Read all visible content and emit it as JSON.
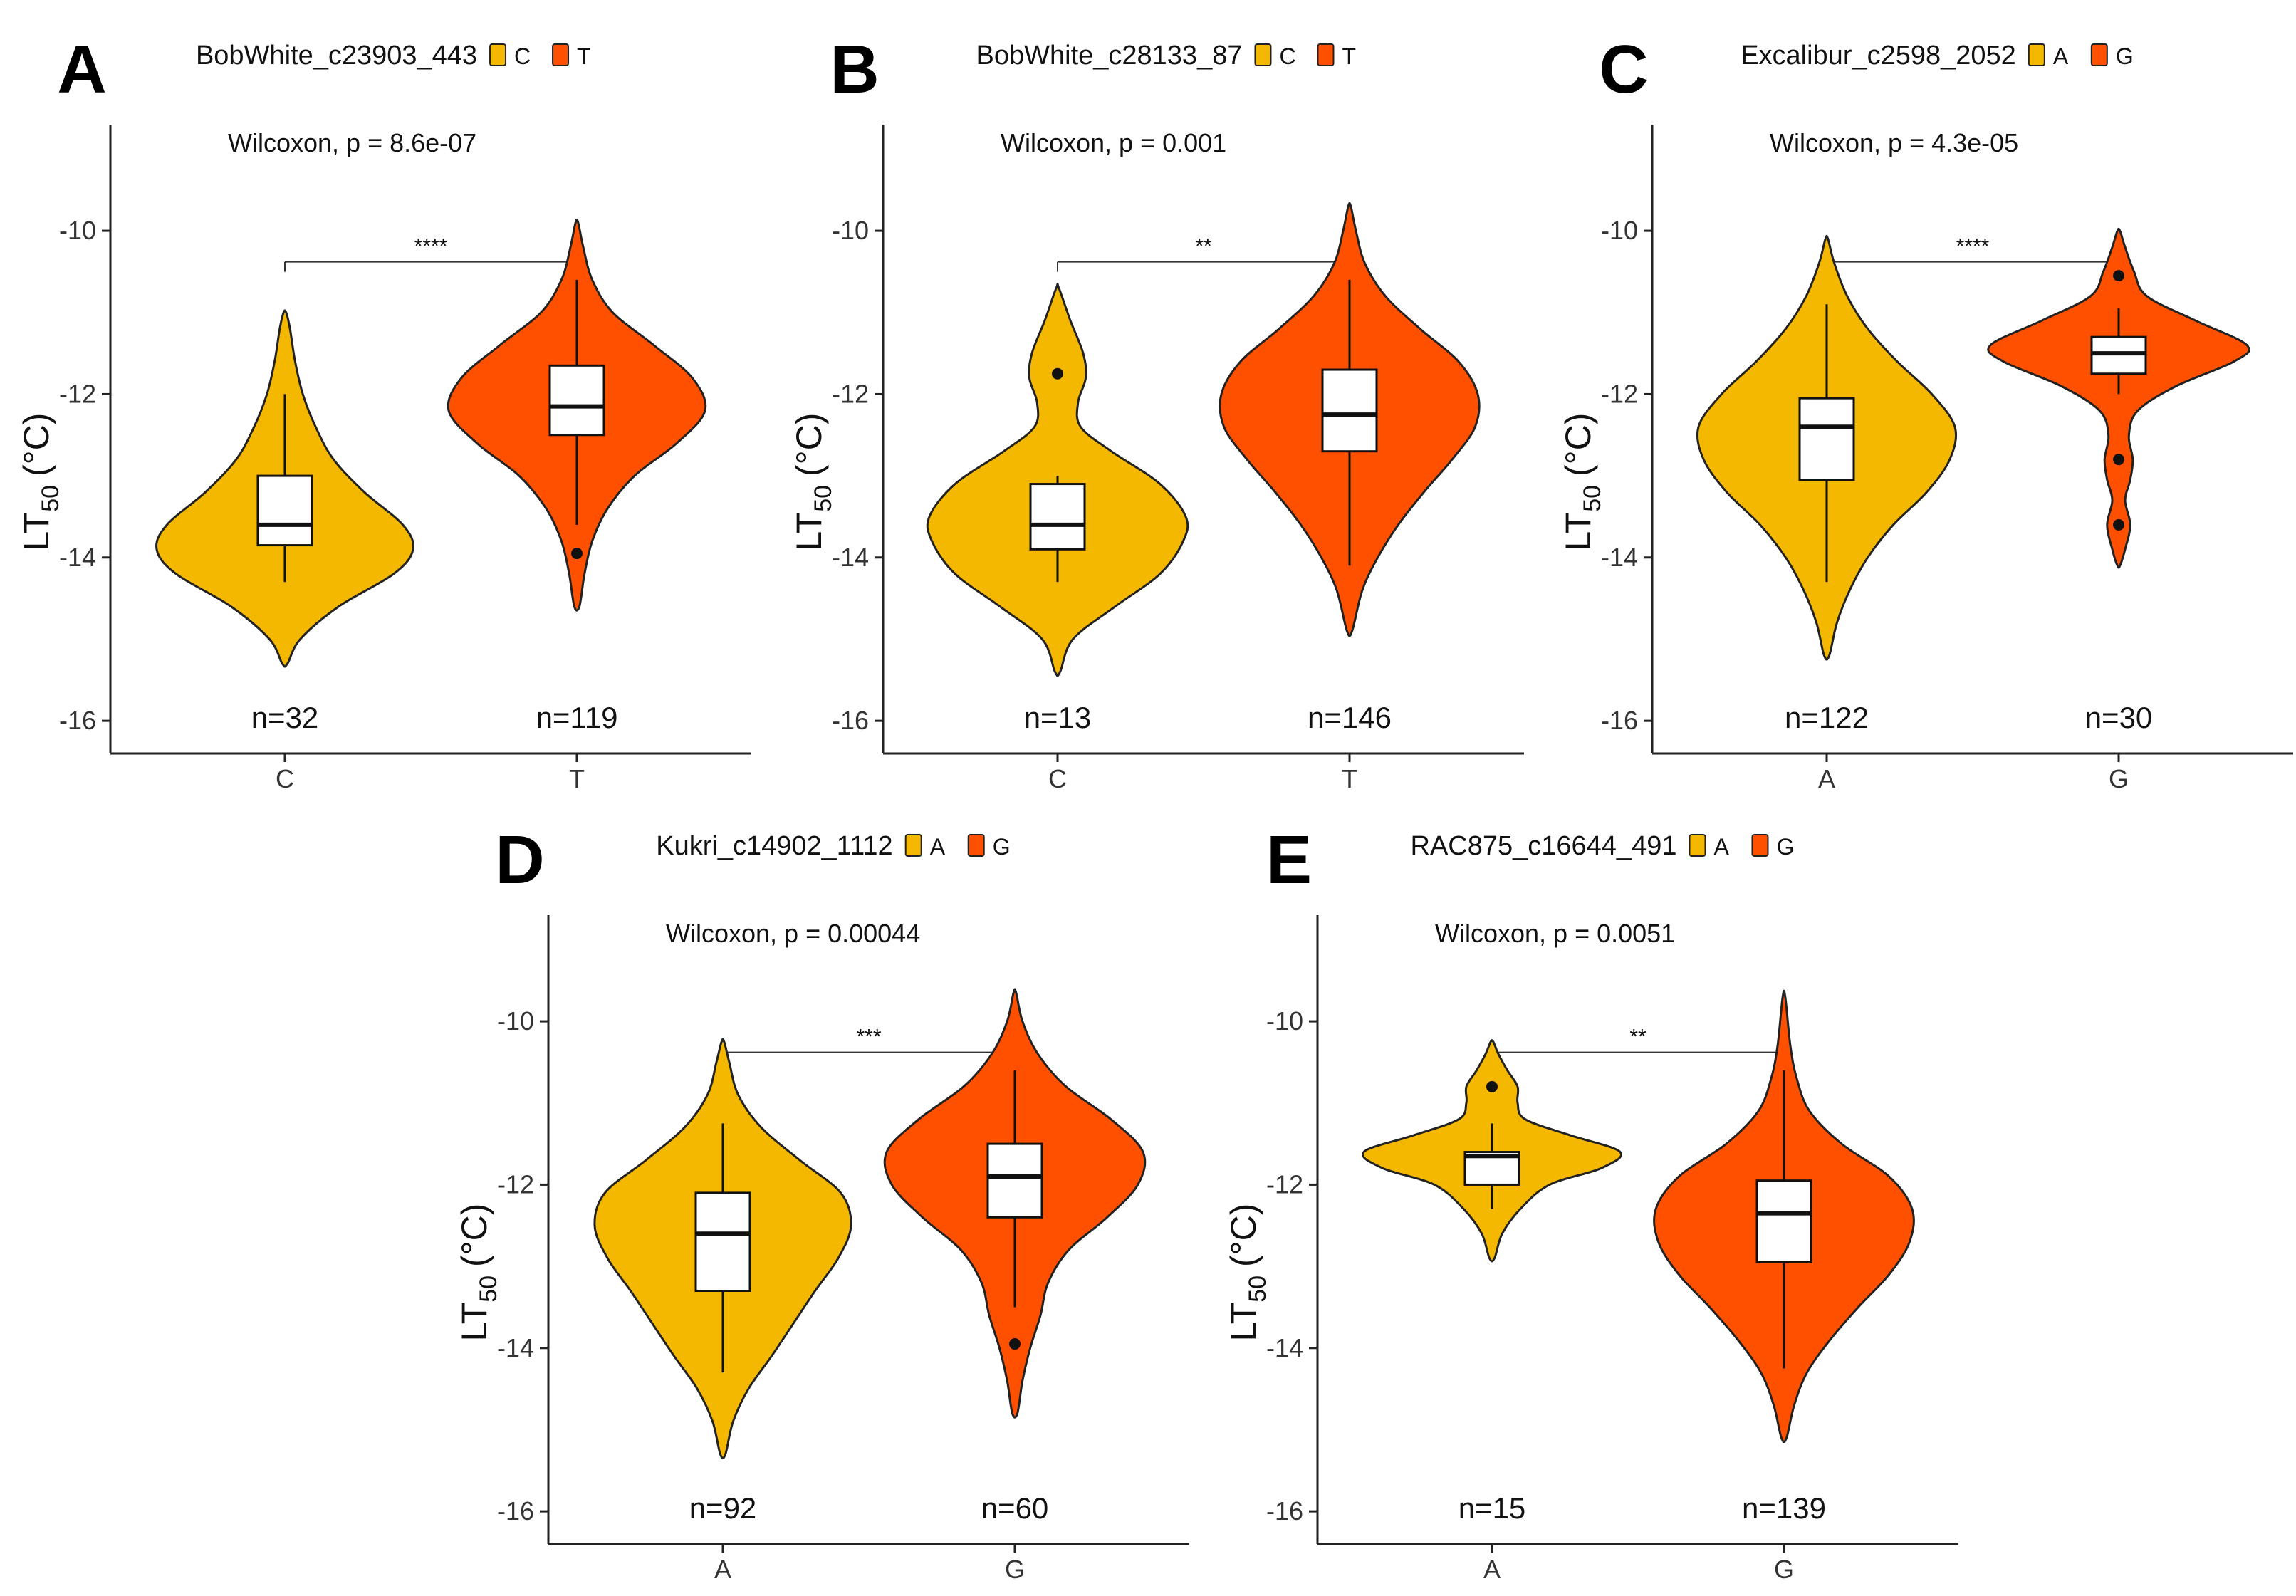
{
  "colors": {
    "group1": "#F5B800",
    "group2": "#FF5000",
    "outline": "#222222"
  },
  "chart_data": [
    {
      "type": "violin",
      "label": "A",
      "title": "BobWhite_c23903_443",
      "legend": [
        "C",
        "T"
      ],
      "ylabel_main": "LT",
      "ylabel_sub": "50",
      "ylabel_unit": "(°C)",
      "stat": "Wilcoxon, p = 8.6e-07",
      "significance": "****",
      "ylim": [
        -16.4,
        -8.7
      ],
      "yticks": [
        -10,
        -12,
        -14,
        -16
      ],
      "ytick_labels": [
        "-10",
        "-12",
        "-14",
        "-16"
      ],
      "groups": [
        {
          "name": "C",
          "n_label": "n=32",
          "min": -14.3,
          "q1": -13.85,
          "median": -13.6,
          "q3": -13.0,
          "max": -12.0,
          "violin_top": -11.0,
          "violin_bottom": -15.3,
          "outliers": [],
          "density": [
            [
              -15.3,
              0.02
            ],
            [
              -15.0,
              0.12
            ],
            [
              -14.6,
              0.42
            ],
            [
              -14.2,
              0.85
            ],
            [
              -13.9,
              1.0
            ],
            [
              -13.6,
              0.92
            ],
            [
              -13.2,
              0.62
            ],
            [
              -12.8,
              0.38
            ],
            [
              -12.4,
              0.24
            ],
            [
              -12.0,
              0.14
            ],
            [
              -11.6,
              0.08
            ],
            [
              -11.2,
              0.04
            ],
            [
              -11.0,
              0.01
            ]
          ]
        },
        {
          "name": "T",
          "n_label": "n=119",
          "min": -13.6,
          "q1": -12.5,
          "median": -12.15,
          "q3": -11.65,
          "max": -10.6,
          "violin_top": -9.9,
          "violin_bottom": -14.6,
          "outliers": [
            -13.95
          ],
          "density": [
            [
              -14.6,
              0.02
            ],
            [
              -14.2,
              0.06
            ],
            [
              -13.8,
              0.12
            ],
            [
              -13.4,
              0.24
            ],
            [
              -13.0,
              0.45
            ],
            [
              -12.6,
              0.78
            ],
            [
              -12.2,
              1.0
            ],
            [
              -11.8,
              0.9
            ],
            [
              -11.4,
              0.6
            ],
            [
              -11.0,
              0.28
            ],
            [
              -10.6,
              0.12
            ],
            [
              -10.2,
              0.05
            ],
            [
              -9.9,
              0.01
            ]
          ]
        }
      ]
    },
    {
      "type": "violin",
      "label": "B",
      "title": "BobWhite_c28133_87",
      "legend": [
        "C",
        "T"
      ],
      "ylabel_main": "LT",
      "ylabel_sub": "50",
      "ylabel_unit": "(°C)",
      "stat": "Wilcoxon, p = 0.001",
      "significance": "**",
      "ylim": [
        -16.4,
        -8.7
      ],
      "yticks": [
        -10,
        -12,
        -14,
        -16
      ],
      "ytick_labels": [
        "-10",
        "-12",
        "-14",
        "-16"
      ],
      "groups": [
        {
          "name": "C",
          "n_label": "n=13",
          "min": -14.3,
          "q1": -13.9,
          "median": -13.6,
          "q3": -13.1,
          "max": -13.0,
          "violin_top": -10.7,
          "violin_bottom": -15.4,
          "outliers": [
            -11.75
          ],
          "density": [
            [
              -15.4,
              0.02
            ],
            [
              -15.0,
              0.12
            ],
            [
              -14.6,
              0.45
            ],
            [
              -14.2,
              0.8
            ],
            [
              -13.8,
              0.98
            ],
            [
              -13.5,
              1.0
            ],
            [
              -13.1,
              0.8
            ],
            [
              -12.7,
              0.42
            ],
            [
              -12.4,
              0.18
            ],
            [
              -12.1,
              0.16
            ],
            [
              -11.8,
              0.22
            ],
            [
              -11.5,
              0.2
            ],
            [
              -11.1,
              0.1
            ],
            [
              -10.7,
              0.01
            ]
          ]
        },
        {
          "name": "T",
          "n_label": "n=146",
          "min": -14.1,
          "q1": -12.7,
          "median": -12.25,
          "q3": -11.7,
          "max": -10.6,
          "violin_top": -9.7,
          "violin_bottom": -14.9,
          "outliers": [],
          "density": [
            [
              -14.9,
              0.02
            ],
            [
              -14.4,
              0.1
            ],
            [
              -14.0,
              0.22
            ],
            [
              -13.6,
              0.38
            ],
            [
              -13.2,
              0.58
            ],
            [
              -12.8,
              0.8
            ],
            [
              -12.4,
              0.98
            ],
            [
              -12.0,
              1.0
            ],
            [
              -11.6,
              0.85
            ],
            [
              -11.2,
              0.55
            ],
            [
              -10.8,
              0.28
            ],
            [
              -10.4,
              0.12
            ],
            [
              -10.0,
              0.05
            ],
            [
              -9.7,
              0.01
            ]
          ]
        }
      ]
    },
    {
      "type": "violin",
      "label": "C",
      "title": "Excalibur_c2598_2052",
      "legend": [
        "A",
        "G"
      ],
      "ylabel_main": "LT",
      "ylabel_sub": "50",
      "ylabel_unit": "(°C)",
      "stat": "Wilcoxon, p = 4.3e-05",
      "significance": "****",
      "ylim": [
        -16.4,
        -8.7
      ],
      "yticks": [
        -10,
        -12,
        -14,
        -16
      ],
      "ytick_labels": [
        "-10",
        "-12",
        "-14",
        "-16"
      ],
      "groups": [
        {
          "name": "A",
          "n_label": "n=122",
          "min": -14.3,
          "q1": -13.05,
          "median": -12.4,
          "q3": -12.05,
          "max": -10.9,
          "violin_top": -10.1,
          "violin_bottom": -15.2,
          "outliers": [],
          "density": [
            [
              -15.2,
              0.02
            ],
            [
              -14.8,
              0.08
            ],
            [
              -14.4,
              0.18
            ],
            [
              -14.0,
              0.32
            ],
            [
              -13.6,
              0.52
            ],
            [
              -13.2,
              0.78
            ],
            [
              -12.8,
              0.96
            ],
            [
              -12.4,
              1.0
            ],
            [
              -12.0,
              0.82
            ],
            [
              -11.6,
              0.55
            ],
            [
              -11.2,
              0.32
            ],
            [
              -10.8,
              0.16
            ],
            [
              -10.4,
              0.06
            ],
            [
              -10.1,
              0.01
            ]
          ]
        },
        {
          "name": "G",
          "n_label": "n=30",
          "min": -12.0,
          "q1": -11.75,
          "median": -11.5,
          "q3": -11.3,
          "max": -10.95,
          "violin_top": -10.0,
          "violin_bottom": -14.1,
          "outliers": [
            -10.55,
            -12.8,
            -13.6
          ],
          "density": [
            [
              -14.1,
              0.01
            ],
            [
              -13.9,
              0.05
            ],
            [
              -13.6,
              0.09
            ],
            [
              -13.3,
              0.05
            ],
            [
              -13.05,
              0.09
            ],
            [
              -12.8,
              0.11
            ],
            [
              -12.5,
              0.08
            ],
            [
              -12.2,
              0.15
            ],
            [
              -11.9,
              0.45
            ],
            [
              -11.6,
              0.9
            ],
            [
              -11.4,
              1.0
            ],
            [
              -11.1,
              0.6
            ],
            [
              -10.8,
              0.22
            ],
            [
              -10.5,
              0.12
            ],
            [
              -10.2,
              0.05
            ],
            [
              -10.0,
              0.01
            ]
          ]
        }
      ]
    },
    {
      "type": "violin",
      "label": "D",
      "title": "Kukri_c14902_1112",
      "legend": [
        "A",
        "G"
      ],
      "ylabel_main": "LT",
      "ylabel_sub": "50",
      "ylabel_unit": "(°C)",
      "stat": "Wilcoxon, p = 0.00044",
      "significance": "***",
      "ylim": [
        -16.4,
        -8.7
      ],
      "yticks": [
        -10,
        -12,
        -14,
        -16
      ],
      "ytick_labels": [
        "-10",
        "-12",
        "-14",
        "-16"
      ],
      "groups": [
        {
          "name": "A",
          "n_label": "n=92",
          "min": -14.3,
          "q1": -13.3,
          "median": -12.6,
          "q3": -12.1,
          "max": -11.25,
          "violin_top": -10.25,
          "violin_bottom": -15.3,
          "outliers": [],
          "density": [
            [
              -15.3,
              0.02
            ],
            [
              -14.9,
              0.08
            ],
            [
              -14.5,
              0.2
            ],
            [
              -14.1,
              0.38
            ],
            [
              -13.7,
              0.55
            ],
            [
              -13.3,
              0.72
            ],
            [
              -12.9,
              0.9
            ],
            [
              -12.5,
              1.0
            ],
            [
              -12.1,
              0.92
            ],
            [
              -11.7,
              0.6
            ],
            [
              -11.3,
              0.3
            ],
            [
              -10.9,
              0.12
            ],
            [
              -10.5,
              0.05
            ],
            [
              -10.25,
              0.01
            ]
          ]
        },
        {
          "name": "G",
          "n_label": "n=60",
          "min": -13.5,
          "q1": -12.4,
          "median": -11.9,
          "q3": -11.5,
          "max": -10.6,
          "violin_top": -9.65,
          "violin_bottom": -14.8,
          "outliers": [
            -13.95
          ],
          "density": [
            [
              -14.8,
              0.02
            ],
            [
              -14.4,
              0.06
            ],
            [
              -14.0,
              0.12
            ],
            [
              -13.6,
              0.2
            ],
            [
              -13.2,
              0.26
            ],
            [
              -12.8,
              0.42
            ],
            [
              -12.4,
              0.72
            ],
            [
              -12.0,
              0.96
            ],
            [
              -11.6,
              1.0
            ],
            [
              -11.2,
              0.75
            ],
            [
              -10.8,
              0.4
            ],
            [
              -10.4,
              0.18
            ],
            [
              -10.0,
              0.06
            ],
            [
              -9.65,
              0.01
            ]
          ]
        }
      ]
    },
    {
      "type": "violin",
      "label": "E",
      "title": "RAC875_c16644_491",
      "legend": [
        "A",
        "G"
      ],
      "ylabel_main": "LT",
      "ylabel_sub": "50",
      "ylabel_unit": "(°C)",
      "stat": "Wilcoxon, p = 0.0051",
      "significance": "**",
      "ylim": [
        -16.4,
        -8.7
      ],
      "yticks": [
        -10,
        -12,
        -14,
        -16
      ],
      "ytick_labels": [
        "-10",
        "-12",
        "-14",
        "-16"
      ],
      "groups": [
        {
          "name": "A",
          "n_label": "n=15",
          "min": -12.3,
          "q1": -12.0,
          "median": -11.65,
          "q3": -11.6,
          "max": -11.25,
          "violin_top": -10.25,
          "violin_bottom": -12.9,
          "outliers": [
            -10.8
          ],
          "density": [
            [
              -12.9,
              0.02
            ],
            [
              -12.6,
              0.08
            ],
            [
              -12.3,
              0.22
            ],
            [
              -12.0,
              0.45
            ],
            [
              -11.8,
              0.85
            ],
            [
              -11.6,
              1.0
            ],
            [
              -11.4,
              0.62
            ],
            [
              -11.2,
              0.26
            ],
            [
              -11.0,
              0.2
            ],
            [
              -10.8,
              0.2
            ],
            [
              -10.6,
              0.12
            ],
            [
              -10.4,
              0.05
            ],
            [
              -10.25,
              0.01
            ]
          ]
        },
        {
          "name": "G",
          "n_label": "n=139",
          "min": -14.25,
          "q1": -12.95,
          "median": -12.35,
          "q3": -11.95,
          "max": -10.6,
          "violin_top": -9.7,
          "violin_bottom": -15.1,
          "outliers": [],
          "density": [
            [
              -15.1,
              0.02
            ],
            [
              -14.7,
              0.08
            ],
            [
              -14.3,
              0.18
            ],
            [
              -13.9,
              0.36
            ],
            [
              -13.5,
              0.58
            ],
            [
              -13.1,
              0.82
            ],
            [
              -12.7,
              0.98
            ],
            [
              -12.3,
              1.0
            ],
            [
              -11.9,
              0.82
            ],
            [
              -11.5,
              0.45
            ],
            [
              -11.1,
              0.2
            ],
            [
              -10.7,
              0.1
            ],
            [
              -10.3,
              0.05
            ],
            [
              -9.7,
              0.01
            ]
          ]
        }
      ]
    }
  ]
}
